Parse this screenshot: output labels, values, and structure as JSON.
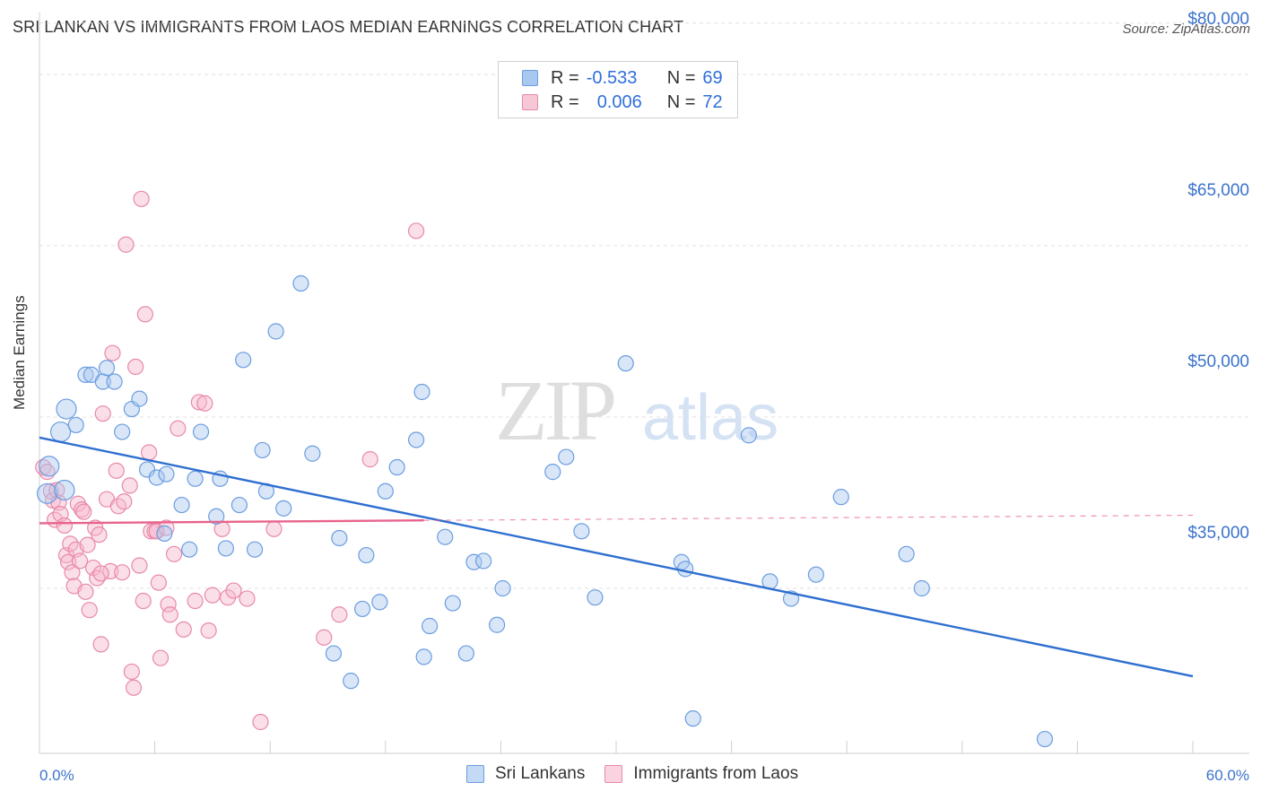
{
  "header": {
    "title": "SRI LANKAN VS IMMIGRANTS FROM LAOS MEDIAN EARNINGS CORRELATION CHART",
    "source": "Source: ZipAtlas.com"
  },
  "watermark": {
    "part1": "ZIP",
    "part2": "atlas"
  },
  "legend": {
    "rows": [
      {
        "r_label": "R =",
        "r_value": "-0.533",
        "n_label": "N =",
        "n_value": "69"
      },
      {
        "r_label": "R =",
        "r_value": "0.006",
        "n_label": "N =",
        "n_value": "72"
      }
    ]
  },
  "bottom_legend": {
    "items": [
      {
        "label": "Sri Lankans"
      },
      {
        "label": "Immigrants from Laos"
      }
    ]
  },
  "colors": {
    "blue_fill": "#a9c8f0",
    "blue_stroke": "#6b9de0",
    "blue_line": "#2f6fd0",
    "pink_fill": "#f6b8cc",
    "pink_stroke": "#e889a8",
    "pink_line": "#e8638c",
    "axis_text": "#3b73cc",
    "grid": "#e0e0e0"
  },
  "chart_data": {
    "type": "scatter",
    "title": "SRI LANKAN VS IMMIGRANTS FROM LAOS MEDIAN EARNINGS CORRELATION CHART",
    "xlabel": "",
    "ylabel": "Median Earnings",
    "xlim": [
      0,
      60
    ],
    "ylim": [
      20000,
      84500
    ],
    "x_tick_labels": [
      "0.0%",
      "60.0%"
    ],
    "y_ticks": [
      35000,
      50000,
      65000,
      80000
    ],
    "y_tick_labels": [
      "$35,000",
      "$50,000",
      "$65,000",
      "$80,000"
    ],
    "grid": true,
    "legend_position": "top-center",
    "series": [
      {
        "name": "Sri Lankans",
        "r": -0.533,
        "n": 69,
        "trend": {
          "x": [
            0,
            60
          ],
          "y": [
            48200,
            27300
          ]
        },
        "points": [
          [
            0.5,
            45700
          ],
          [
            0.4,
            43300
          ],
          [
            1.1,
            48700
          ],
          [
            1.4,
            50700
          ],
          [
            1.9,
            49300
          ],
          [
            2.4,
            53700
          ],
          [
            2.7,
            53700
          ],
          [
            3.3,
            53100
          ],
          [
            3.5,
            54300
          ],
          [
            3.9,
            53100
          ],
          [
            4.3,
            48700
          ],
          [
            4.8,
            50700
          ],
          [
            5.2,
            51600
          ],
          [
            5.6,
            45400
          ],
          [
            6.1,
            44700
          ],
          [
            6.5,
            39800
          ],
          [
            6.6,
            45000
          ],
          [
            7.4,
            42300
          ],
          [
            7.8,
            38400
          ],
          [
            8.1,
            44600
          ],
          [
            8.4,
            48700
          ],
          [
            9.2,
            41300
          ],
          [
            9.4,
            44600
          ],
          [
            9.7,
            38500
          ],
          [
            10.4,
            42300
          ],
          [
            10.6,
            55000
          ],
          [
            11.2,
            38400
          ],
          [
            11.6,
            47100
          ],
          [
            11.8,
            43500
          ],
          [
            12.3,
            57500
          ],
          [
            12.7,
            42000
          ],
          [
            13.6,
            61700
          ],
          [
            14.2,
            46800
          ],
          [
            15.3,
            29300
          ],
          [
            15.6,
            39400
          ],
          [
            16.2,
            26900
          ],
          [
            16.8,
            33200
          ],
          [
            17.0,
            37900
          ],
          [
            17.7,
            33800
          ],
          [
            18.0,
            43500
          ],
          [
            18.6,
            45600
          ],
          [
            19.6,
            48000
          ],
          [
            19.9,
            52200
          ],
          [
            20.0,
            29000
          ],
          [
            20.3,
            31700
          ],
          [
            21.1,
            39500
          ],
          [
            21.5,
            33700
          ],
          [
            22.2,
            29300
          ],
          [
            22.6,
            37300
          ],
          [
            23.1,
            37400
          ],
          [
            23.8,
            31800
          ],
          [
            24.1,
            35000
          ],
          [
            26.7,
            45200
          ],
          [
            27.4,
            46500
          ],
          [
            28.2,
            40000
          ],
          [
            28.9,
            34200
          ],
          [
            30.5,
            54700
          ],
          [
            33.4,
            37300
          ],
          [
            33.6,
            36700
          ],
          [
            34.0,
            23600
          ],
          [
            36.9,
            48400
          ],
          [
            38.0,
            35600
          ],
          [
            39.1,
            34100
          ],
          [
            40.4,
            36200
          ],
          [
            41.7,
            43000
          ],
          [
            45.1,
            38000
          ],
          [
            45.9,
            35000
          ],
          [
            52.3,
            21800
          ],
          [
            1.3,
            43600
          ]
        ]
      },
      {
        "name": "Immigrants from Laos",
        "r": 0.006,
        "n": 72,
        "trend": {
          "x": [
            0,
            20
          ],
          "y": [
            40700,
            40950
          ]
        },
        "trend_dashed": {
          "x": [
            20,
            60
          ],
          "y": [
            40950,
            41400
          ]
        },
        "points": [
          [
            0.2,
            45600
          ],
          [
            0.4,
            45200
          ],
          [
            0.6,
            43500
          ],
          [
            0.7,
            42700
          ],
          [
            0.8,
            41000
          ],
          [
            0.9,
            43600
          ],
          [
            1.0,
            42500
          ],
          [
            1.1,
            41500
          ],
          [
            1.3,
            40500
          ],
          [
            1.4,
            37900
          ],
          [
            1.5,
            37300
          ],
          [
            1.6,
            38900
          ],
          [
            1.7,
            36400
          ],
          [
            1.8,
            35200
          ],
          [
            1.9,
            38400
          ],
          [
            2.0,
            42400
          ],
          [
            2.1,
            37400
          ],
          [
            2.2,
            41900
          ],
          [
            2.4,
            34700
          ],
          [
            2.5,
            38800
          ],
          [
            2.6,
            33100
          ],
          [
            2.8,
            36800
          ],
          [
            2.9,
            40300
          ],
          [
            3.0,
            35900
          ],
          [
            3.1,
            39700
          ],
          [
            3.2,
            30100
          ],
          [
            3.3,
            50300
          ],
          [
            3.5,
            42800
          ],
          [
            3.7,
            36500
          ],
          [
            3.8,
            55600
          ],
          [
            4.0,
            45300
          ],
          [
            4.1,
            42200
          ],
          [
            4.3,
            36400
          ],
          [
            4.4,
            42600
          ],
          [
            4.5,
            65100
          ],
          [
            4.7,
            44000
          ],
          [
            4.8,
            27700
          ],
          [
            4.9,
            26300
          ],
          [
            5.0,
            54400
          ],
          [
            5.2,
            37000
          ],
          [
            5.3,
            69100
          ],
          [
            5.4,
            33900
          ],
          [
            5.5,
            59000
          ],
          [
            5.7,
            46900
          ],
          [
            5.8,
            40000
          ],
          [
            6.0,
            40000
          ],
          [
            6.1,
            40000
          ],
          [
            6.2,
            35500
          ],
          [
            6.3,
            28900
          ],
          [
            6.6,
            40300
          ],
          [
            6.7,
            33600
          ],
          [
            6.8,
            32700
          ],
          [
            7.0,
            38000
          ],
          [
            7.2,
            49000
          ],
          [
            7.5,
            31400
          ],
          [
            8.1,
            33900
          ],
          [
            8.3,
            51300
          ],
          [
            8.6,
            51200
          ],
          [
            8.8,
            31300
          ],
          [
            9.0,
            34400
          ],
          [
            9.5,
            40200
          ],
          [
            9.8,
            34200
          ],
          [
            10.1,
            34800
          ],
          [
            10.8,
            34100
          ],
          [
            11.5,
            23300
          ],
          [
            12.2,
            40200
          ],
          [
            14.8,
            30700
          ],
          [
            15.6,
            32700
          ],
          [
            17.2,
            46300
          ],
          [
            19.6,
            66300
          ],
          [
            3.2,
            36300
          ],
          [
            2.3,
            41700
          ]
        ]
      }
    ]
  }
}
